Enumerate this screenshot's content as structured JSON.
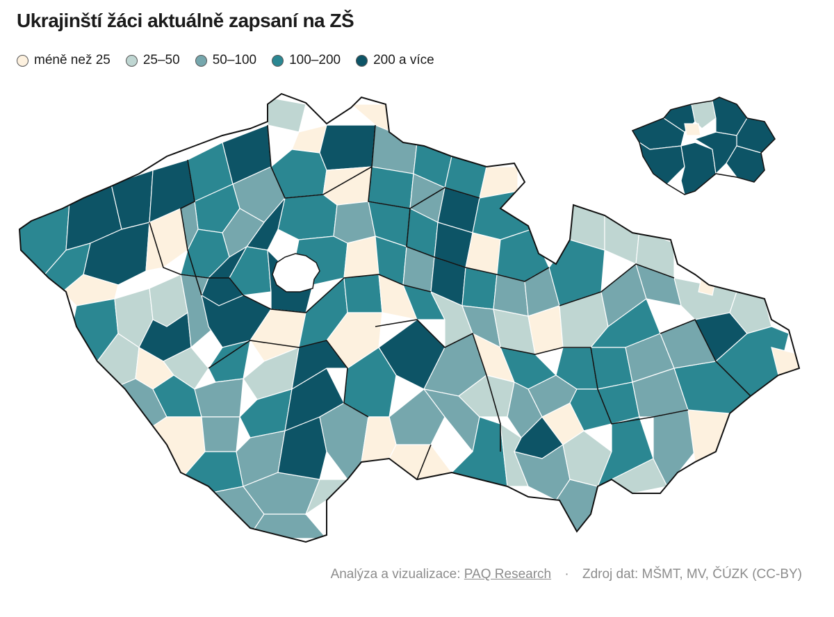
{
  "title": "Ukrajinští žáci aktuálně zapsaní na ZŠ",
  "legend": [
    {
      "label": "méně než 25",
      "color": "#fdf1df"
    },
    {
      "label": "25–50",
      "color": "#bfd6d2"
    },
    {
      "label": "50–100",
      "color": "#76a7ad"
    },
    {
      "label": "100–200",
      "color": "#2b8792"
    },
    {
      "label": "200 a více",
      "color": "#0d5466"
    }
  ],
  "colors": {
    "stroke_thin": "#ffffff",
    "stroke_region": "#111111",
    "prague_hole": "#ffffff"
  },
  "footer": {
    "prefix": "Analýza a vizualizace:",
    "link": "PAQ Research",
    "separator": "·",
    "source": "Zdroj dat: MŠMT, MV, ČÚZK (CC-BY)"
  }
}
